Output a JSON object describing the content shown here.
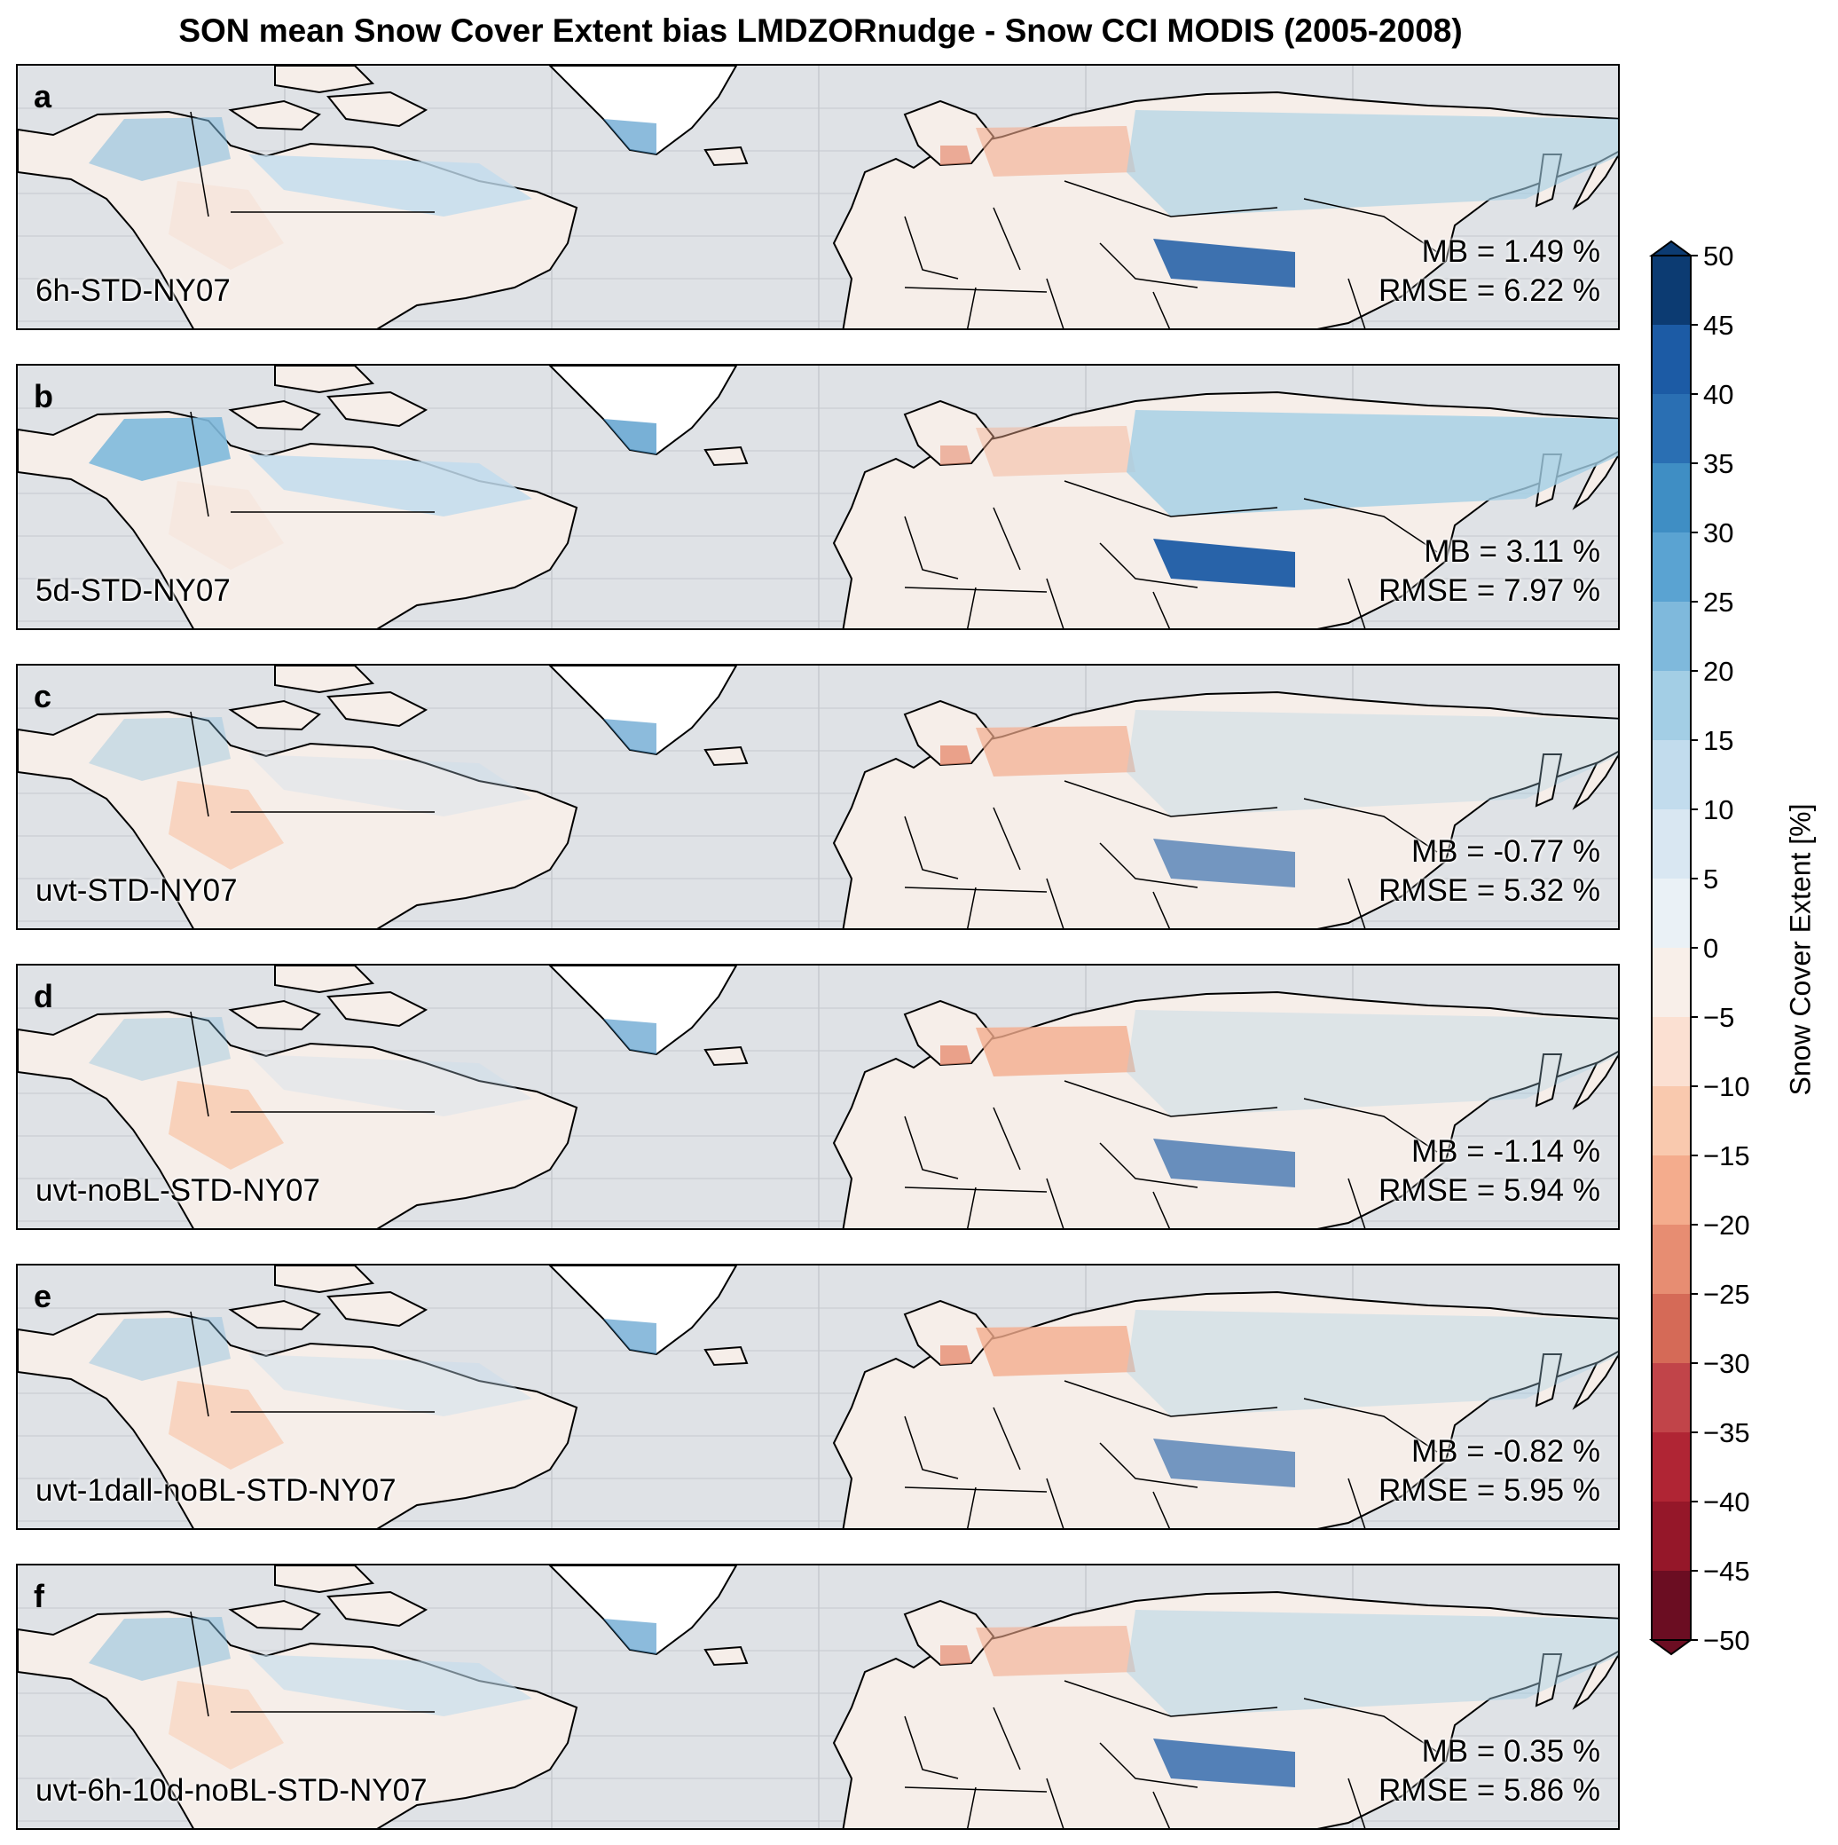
{
  "title": "SON mean Snow Cover Extent bias LMDZORnudge - Snow CCI MODIS (2005-2008)",
  "panels": [
    {
      "letter": "a",
      "run": "6h-STD-NY07",
      "mb": "MB = 1.49 %",
      "rmse": "RMSE = 6.22 %"
    },
    {
      "letter": "b",
      "run": "5d-STD-NY07",
      "mb": "MB = 3.11 %",
      "rmse": "RMSE = 7.97 %"
    },
    {
      "letter": "c",
      "run": "uvt-STD-NY07",
      "mb": "MB = -0.77 %",
      "rmse": "RMSE = 5.32 %"
    },
    {
      "letter": "d",
      "run": "uvt-noBL-STD-NY07",
      "mb": "MB = -1.14 %",
      "rmse": "RMSE = 5.94 %"
    },
    {
      "letter": "e",
      "run": "uvt-1dall-noBL-STD-NY07",
      "mb": "MB = -0.82 %",
      "rmse": "RMSE = 5.95 %"
    },
    {
      "letter": "f",
      "run": "uvt-6h-10d-noBL-STD-NY07",
      "mb": "MB = 0.35 %",
      "rmse": "RMSE = 5.86 %"
    }
  ],
  "colorbar": {
    "label": "Snow Cover Extent [%]",
    "ticks": [
      "50",
      "45",
      "40",
      "35",
      "30",
      "25",
      "20",
      "15",
      "10",
      "5",
      "0",
      "−5",
      "−10",
      "−15",
      "−20",
      "−25",
      "−30",
      "−35",
      "−40",
      "−45",
      "−50"
    ],
    "colors": [
      "#0c3b72",
      "#1c5ba5",
      "#2a6fb3",
      "#3f8ec4",
      "#5aa3d2",
      "#7fb9dc",
      "#a3cee5",
      "#c2dced",
      "#d9e7f2",
      "#eaf1f6",
      "#f8efe9",
      "#fbe0d2",
      "#f9c9ae",
      "#f4ac8d",
      "#e78d72",
      "#d56a57",
      "#c14449",
      "#b02534",
      "#951729",
      "#6b0d22"
    ]
  },
  "map_colors": {
    "ocean": "#dfe2e6",
    "land": "#f6eee9",
    "ice": "#ffffff"
  }
}
